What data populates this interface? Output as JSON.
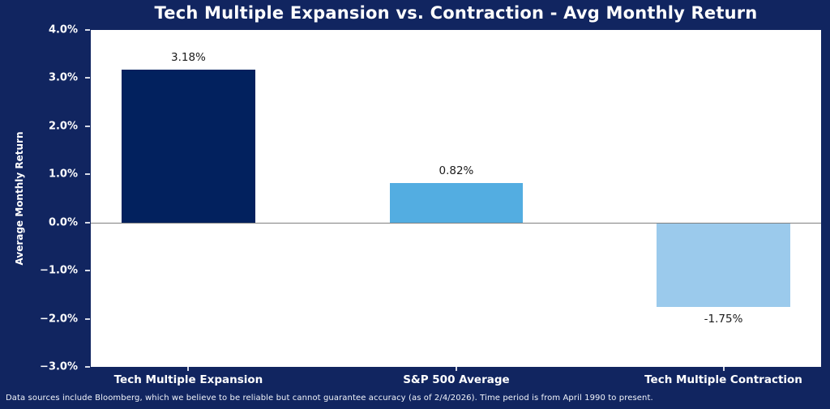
{
  "chart": {
    "title": "Tech Multiple Expansion vs. Contraction - Avg Monthly Return",
    "ylabel": "Average Monthly Return",
    "footer": "Data sources include Bloomberg, which we believe to be reliable but cannot guarantee accuracy (as of 2/4/2026). Time period is from April 1990 to present."
  },
  "chart_data": {
    "type": "bar",
    "title": "Tech Multiple Expansion vs. Contraction - Avg Monthly Return",
    "categories": [
      "Tech Multiple Expansion",
      "S&P 500 Average",
      "Tech Multiple Contraction"
    ],
    "values": [
      3.18,
      0.82,
      -1.75
    ],
    "value_labels": [
      "3.18%",
      "0.82%",
      "-1.75%"
    ],
    "bar_colors": [
      "#02215E",
      "#53ADE1",
      "#9BCAEC"
    ],
    "xlabel": "",
    "ylabel": "Average Monthly Return",
    "ylim": [
      -3.0,
      4.0
    ],
    "yticks": [
      4.0,
      3.0,
      2.0,
      1.0,
      0.0,
      -1.0,
      -2.0,
      -3.0
    ],
    "ytick_labels": [
      "4.0%",
      "3.0%",
      "2.0%",
      "1.0%",
      "0.0%",
      "−1.0%",
      "−2.0%",
      "−3.0%"
    ],
    "grid": false,
    "legend": false,
    "zero_line": true
  },
  "colors": {
    "figure_background": "#112560",
    "plot_background": "#ffffff",
    "text": "#ffffff",
    "value_label_text": "#1a1a1a",
    "zero_line": "#808080",
    "tick_mark": "#d8dce8"
  }
}
